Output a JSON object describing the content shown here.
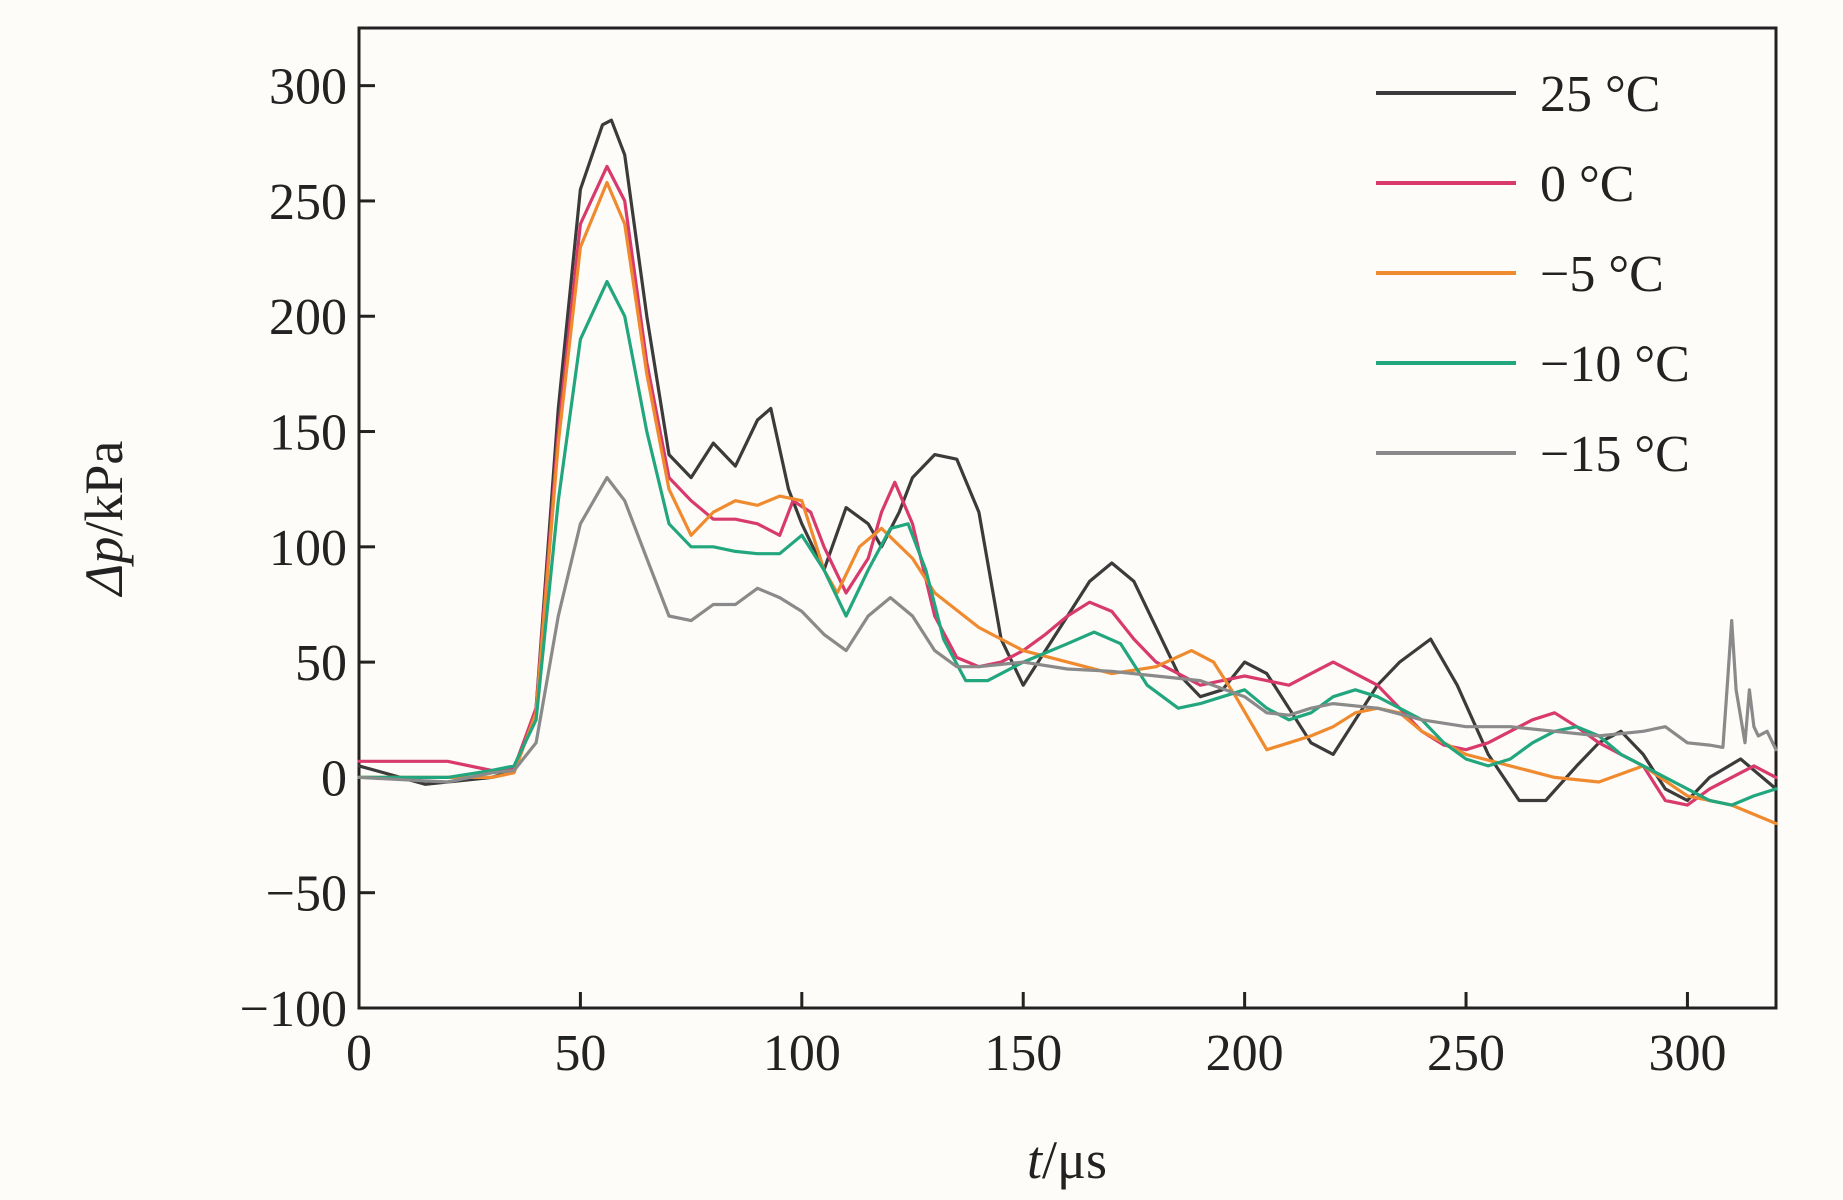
{
  "chart_data": {
    "type": "line",
    "xlabel": {
      "var": "t",
      "unit": "/μs"
    },
    "ylabel": {
      "var": "Δp",
      "unit": "/kPa"
    },
    "xlim": [
      0,
      320
    ],
    "ylim": [
      -100,
      325
    ],
    "xticks": [
      0,
      50,
      100,
      150,
      200,
      250,
      300
    ],
    "yticks": [
      -100,
      -50,
      0,
      50,
      100,
      150,
      200,
      250,
      300
    ],
    "xtick_labels": [
      "0",
      "50",
      "100",
      "150",
      "200",
      "250",
      "300"
    ],
    "ytick_labels": [
      "−100",
      "−50",
      "0",
      "50",
      "100",
      "150",
      "200",
      "250",
      "300"
    ],
    "grid": false,
    "legend_position": "top-right",
    "series": [
      {
        "name": "25 °C",
        "color": "#3b3b3b",
        "x": [
          0,
          15,
          30,
          35,
          40,
          45,
          50,
          55,
          57,
          60,
          65,
          70,
          75,
          80,
          85,
          90,
          93,
          97,
          100,
          105,
          110,
          115,
          118,
          122,
          125,
          130,
          135,
          140,
          145,
          150,
          155,
          160,
          165,
          170,
          175,
          180,
          185,
          190,
          195,
          200,
          205,
          210,
          215,
          220,
          225,
          230,
          235,
          242,
          248,
          255,
          262,
          268,
          275,
          280,
          285,
          290,
          295,
          300,
          305,
          312,
          320
        ],
        "y": [
          5,
          -3,
          0,
          3,
          30,
          160,
          255,
          283,
          285,
          270,
          200,
          140,
          130,
          145,
          135,
          155,
          160,
          125,
          110,
          90,
          117,
          110,
          100,
          115,
          130,
          140,
          138,
          115,
          60,
          40,
          55,
          70,
          85,
          93,
          85,
          65,
          45,
          35,
          38,
          50,
          45,
          30,
          15,
          10,
          25,
          40,
          50,
          60,
          40,
          10,
          -10,
          -10,
          5,
          15,
          20,
          10,
          -5,
          -10,
          0,
          8,
          -5
        ]
      },
      {
        "name": "0 °C",
        "color": "#d83a6e",
        "x": [
          0,
          20,
          30,
          35,
          40,
          45,
          50,
          56,
          60,
          65,
          70,
          75,
          80,
          85,
          90,
          95,
          98,
          102,
          105,
          110,
          115,
          118,
          121,
          125,
          130,
          135,
          140,
          145,
          150,
          155,
          160,
          165,
          170,
          175,
          180,
          185,
          190,
          195,
          200,
          210,
          215,
          220,
          225,
          230,
          235,
          240,
          245,
          250,
          255,
          260,
          265,
          270,
          275,
          280,
          285,
          290,
          295,
          300,
          305,
          310,
          315,
          320
        ],
        "y": [
          7,
          7,
          3,
          4,
          30,
          150,
          240,
          265,
          250,
          180,
          130,
          120,
          112,
          112,
          110,
          105,
          120,
          115,
          100,
          80,
          95,
          115,
          128,
          110,
          70,
          52,
          48,
          50,
          55,
          62,
          70,
          76,
          72,
          60,
          50,
          45,
          40,
          42,
          44,
          40,
          45,
          50,
          45,
          40,
          30,
          20,
          14,
          12,
          15,
          20,
          25,
          28,
          22,
          15,
          10,
          5,
          -10,
          -12,
          -5,
          0,
          5,
          0
        ]
      },
      {
        "name": "−5 °C",
        "color": "#f08a2e",
        "x": [
          0,
          20,
          30,
          35,
          40,
          45,
          50,
          56,
          60,
          65,
          70,
          75,
          80,
          85,
          90,
          95,
          100,
          105,
          108,
          113,
          118,
          125,
          130,
          140,
          150,
          160,
          170,
          180,
          188,
          193,
          198,
          205,
          210,
          215,
          220,
          225,
          230,
          235,
          240,
          250,
          260,
          270,
          280,
          290,
          300,
          310,
          320
        ],
        "y": [
          0,
          0,
          0,
          2,
          28,
          145,
          230,
          258,
          240,
          175,
          125,
          105,
          115,
          120,
          118,
          122,
          120,
          90,
          80,
          100,
          108,
          95,
          80,
          65,
          55,
          50,
          45,
          48,
          55,
          50,
          35,
          12,
          15,
          18,
          22,
          28,
          30,
          28,
          20,
          10,
          5,
          0,
          -2,
          5,
          -8,
          -12,
          -20
        ]
      },
      {
        "name": "−10 °C",
        "color": "#22a67e",
        "x": [
          0,
          20,
          30,
          35,
          40,
          45,
          50,
          56,
          60,
          65,
          70,
          75,
          80,
          85,
          90,
          95,
          100,
          105,
          110,
          115,
          120,
          124,
          128,
          132,
          137,
          142,
          150,
          160,
          166,
          172,
          178,
          185,
          190,
          195,
          200,
          205,
          210,
          215,
          220,
          225,
          230,
          235,
          240,
          245,
          250,
          255,
          260,
          265,
          270,
          275,
          280,
          285,
          290,
          295,
          300,
          305,
          310,
          315,
          320
        ],
        "y": [
          0,
          0,
          3,
          5,
          25,
          120,
          190,
          215,
          200,
          150,
          110,
          100,
          100,
          98,
          97,
          97,
          105,
          90,
          70,
          90,
          108,
          110,
          90,
          60,
          42,
          42,
          50,
          58,
          63,
          58,
          40,
          30,
          32,
          35,
          38,
          30,
          25,
          28,
          35,
          38,
          35,
          30,
          25,
          15,
          8,
          5,
          8,
          15,
          20,
          22,
          18,
          10,
          5,
          0,
          -5,
          -10,
          -12,
          -8,
          -5
        ]
      },
      {
        "name": "−15 °C",
        "color": "#8a8a8a",
        "x": [
          0,
          20,
          30,
          35,
          40,
          45,
          50,
          56,
          60,
          65,
          70,
          75,
          80,
          85,
          90,
          95,
          100,
          105,
          110,
          115,
          120,
          125,
          130,
          135,
          140,
          150,
          160,
          170,
          180,
          190,
          200,
          205,
          210,
          215,
          220,
          230,
          240,
          250,
          260,
          270,
          280,
          290,
          295,
          300,
          305,
          308,
          309,
          310,
          311,
          313,
          314,
          315,
          316,
          318,
          320
        ],
        "y": [
          0,
          -2,
          2,
          3,
          15,
          70,
          110,
          130,
          120,
          95,
          70,
          68,
          75,
          75,
          82,
          78,
          72,
          62,
          55,
          70,
          78,
          70,
          55,
          48,
          48,
          50,
          47,
          46,
          44,
          42,
          35,
          28,
          27,
          30,
          32,
          30,
          25,
          22,
          22,
          20,
          18,
          20,
          22,
          15,
          14,
          13,
          40,
          68,
          38,
          15,
          38,
          22,
          18,
          20,
          12
        ]
      }
    ]
  }
}
